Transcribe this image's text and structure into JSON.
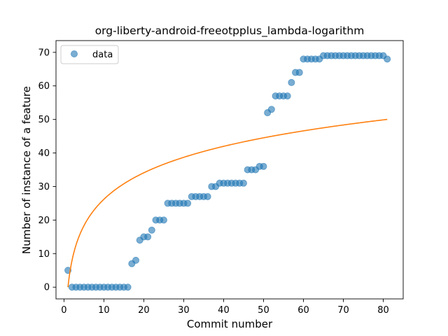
{
  "chart_data": {
    "type": "scatter",
    "title": "org-liberty-android-freeotpplus_lambda-logarithm",
    "xlabel": "Commit number",
    "ylabel": "Number of instance of a feature",
    "xlim": [
      -2.0,
      85.0
    ],
    "ylim": [
      -3.5,
      73.5
    ],
    "xticks": [
      0,
      10,
      20,
      30,
      40,
      50,
      60,
      70,
      80
    ],
    "yticks": [
      0,
      10,
      20,
      30,
      40,
      50,
      60,
      70
    ],
    "grid": false,
    "legend_position": "upper-left",
    "series": [
      {
        "name": "data",
        "kind": "scatter",
        "color": "#1f77b4",
        "x": [
          1,
          2,
          3,
          4,
          5,
          6,
          7,
          8,
          9,
          10,
          11,
          12,
          13,
          14,
          15,
          16,
          17,
          18,
          19,
          20,
          21,
          22,
          23,
          24,
          25,
          26,
          27,
          28,
          29,
          30,
          31,
          32,
          33,
          34,
          35,
          36,
          37,
          38,
          39,
          40,
          41,
          42,
          43,
          44,
          45,
          46,
          47,
          48,
          49,
          50,
          51,
          52,
          53,
          54,
          55,
          56,
          57,
          58,
          59,
          60,
          61,
          62,
          63,
          64,
          65,
          66,
          67,
          68,
          69,
          70,
          71,
          72,
          73,
          74,
          75,
          76,
          77,
          78,
          79,
          80,
          81
        ],
        "y": [
          5,
          0,
          0,
          0,
          0,
          0,
          0,
          0,
          0,
          0,
          0,
          0,
          0,
          0,
          0,
          0,
          7,
          8,
          14,
          15,
          15,
          17,
          20,
          20,
          20,
          25,
          25,
          25,
          25,
          25,
          25,
          27,
          27,
          27,
          27,
          27,
          30,
          30,
          31,
          31,
          31,
          31,
          31,
          31,
          31,
          35,
          35,
          35,
          36,
          36,
          52,
          53,
          57,
          57,
          57,
          57,
          61,
          64,
          64,
          68,
          68,
          68,
          68,
          68,
          69,
          69,
          69,
          69,
          69,
          69,
          69,
          69,
          69,
          69,
          69,
          69,
          69,
          69,
          69,
          69,
          68
        ]
      },
      {
        "kind": "line",
        "color": "#ff7f0e",
        "function": "11.38*ln(x)",
        "x_range": [
          1,
          81
        ]
      }
    ]
  }
}
